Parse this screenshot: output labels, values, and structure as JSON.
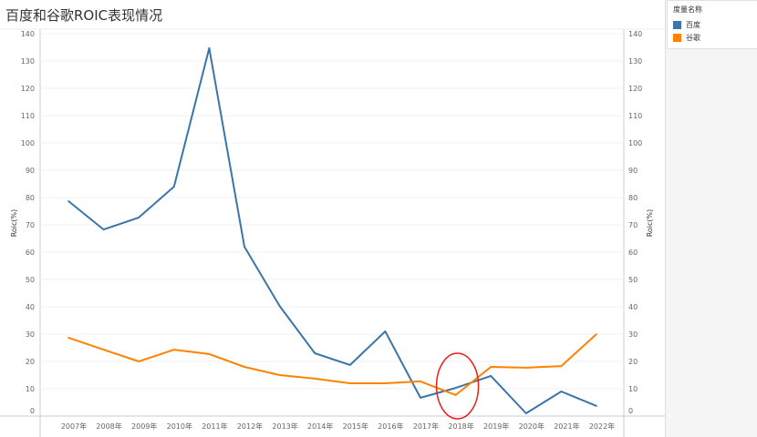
{
  "title": "百度和谷歌ROIC表现情况",
  "legend": {
    "title": "度量名称",
    "items": [
      {
        "label": "百度",
        "color": "#3b75a9"
      },
      {
        "label": "谷歌",
        "color": "#ff8200"
      }
    ]
  },
  "chart_data": {
    "type": "line",
    "title": "百度和谷歌ROIC表现情况",
    "xlabel": "",
    "ylabel": "Roic(%)",
    "y2label": "Roic(%)",
    "ylim": [
      0,
      140
    ],
    "yticks": [
      0,
      10,
      20,
      30,
      40,
      50,
      60,
      70,
      80,
      90,
      100,
      110,
      120,
      130,
      140
    ],
    "categories": [
      "2007年",
      "2008年",
      "2009年",
      "2010年",
      "2011年",
      "2012年",
      "2013年",
      "2014年",
      "2015年",
      "2016年",
      "2017年",
      "2018年",
      "2019年",
      "2020年",
      "2021年",
      "2022年"
    ],
    "series": [
      {
        "name": "百度",
        "color": "#3b75a9",
        "values": [
          78.7,
          68.3,
          72.7,
          84,
          134.7,
          62,
          40.3,
          23,
          18.7,
          31,
          6.7,
          10.3,
          14.7,
          1,
          9,
          3.7
        ]
      },
      {
        "name": "谷歌",
        "color": "#ff8200",
        "values": [
          28.7,
          24.3,
          20,
          24.3,
          22.7,
          18,
          15,
          13.7,
          12,
          12,
          12.7,
          7.7,
          18,
          17.7,
          18.3,
          30
        ]
      }
    ],
    "annotations": [
      {
        "type": "ellipse",
        "color": "#e8201a",
        "category": "2018年"
      }
    ],
    "grid": true,
    "legend_position": "right"
  }
}
